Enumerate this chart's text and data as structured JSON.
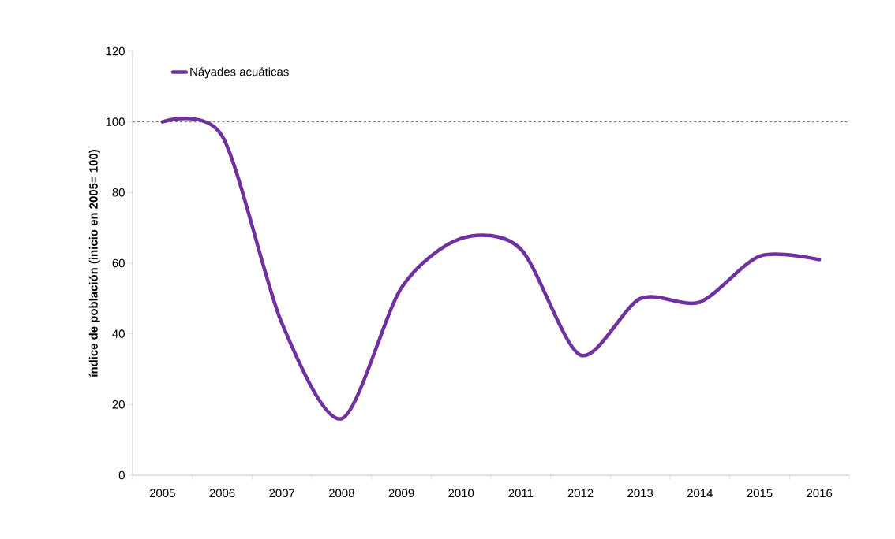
{
  "chart_data": {
    "type": "line",
    "ylabel": "índice de población  (inicio en 2005= 100)",
    "categories": [
      "2005",
      "2006",
      "2007",
      "2008",
      "2009",
      "2010",
      "2011",
      "2012",
      "2013",
      "2014",
      "2015",
      "2016"
    ],
    "series": [
      {
        "name": "Náyades acuáticas",
        "color": "#7030a0",
        "values": [
          100,
          96,
          43,
          16,
          53,
          67,
          64,
          34,
          50,
          49,
          62,
          61
        ]
      }
    ],
    "ylim": [
      0,
      120
    ],
    "yticks": [
      0,
      20,
      40,
      60,
      80,
      100,
      120
    ],
    "ref_lines": [
      {
        "axis": "y",
        "value": 100,
        "color": "#404040",
        "line_style": "dashed"
      }
    ],
    "legend": "top left",
    "grid": false
  }
}
